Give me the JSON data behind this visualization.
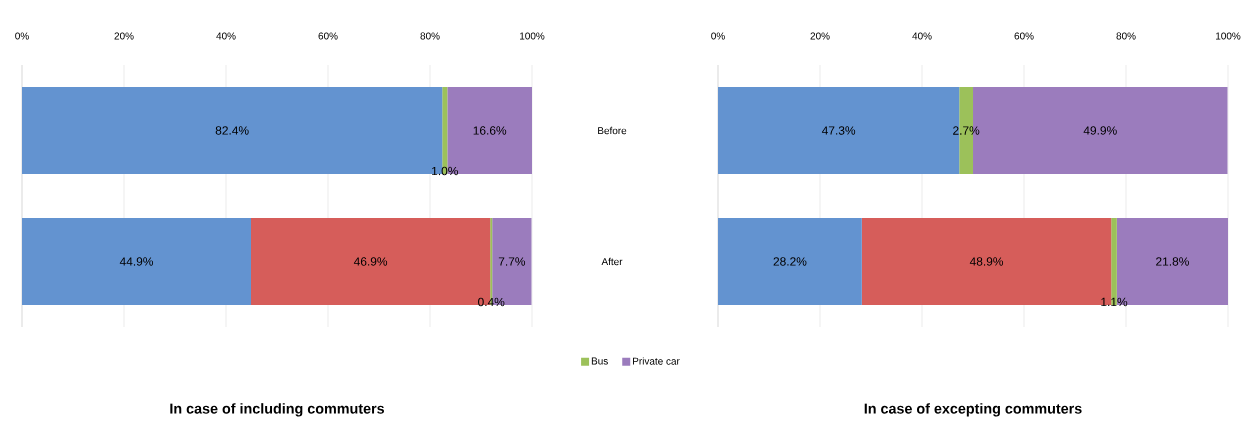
{
  "chart_data": [
    {
      "type": "bar",
      "orientation": "horizontal",
      "stacked": true,
      "title": "In case of including commuters",
      "categories": [
        "Before",
        "After"
      ],
      "xlim": [
        0,
        100
      ],
      "xticks": [
        {
          "value": 0,
          "label": "0%"
        },
        {
          "value": 20,
          "label": "20%"
        },
        {
          "value": 40,
          "label": "40%"
        },
        {
          "value": 60,
          "label": "60%"
        },
        {
          "value": 80,
          "label": "80%"
        },
        {
          "value": 100,
          "label": "100%"
        }
      ],
      "grid": "x",
      "legend": "bottom",
      "series": [
        {
          "color": "#6393d0",
          "values": [
            82.4,
            44.9
          ],
          "value_labels": [
            "82.4%",
            "44.9%"
          ]
        },
        {
          "color": "#d65d5a",
          "values": [
            0,
            46.9
          ],
          "value_labels": [
            null,
            "46.9%"
          ]
        },
        {
          "name": "Bus",
          "color": "#9cc15a",
          "values": [
            1.0,
            0.4
          ],
          "value_labels": [
            "1.0%",
            "0.4%"
          ]
        },
        {
          "name": "Private car",
          "color": "#9b7cbd",
          "values": [
            16.6,
            7.7
          ],
          "value_labels": [
            "16.6%",
            "7.7%"
          ]
        }
      ]
    },
    {
      "type": "bar",
      "orientation": "horizontal",
      "stacked": true,
      "title": "In case of excepting commuters",
      "categories": [
        null,
        null
      ],
      "xlim": [
        0,
        100
      ],
      "xticks": [
        {
          "value": 0,
          "label": "0%"
        },
        {
          "value": 20,
          "label": "20%"
        },
        {
          "value": 40,
          "label": "40%"
        },
        {
          "value": 60,
          "label": "60%"
        },
        {
          "value": 80,
          "label": "80%"
        },
        {
          "value": 100,
          "label": "100%"
        }
      ],
      "grid": "x",
      "series": [
        {
          "color": "#6393d0",
          "values": [
            47.3,
            28.2
          ],
          "value_labels": [
            "47.3%",
            "28.2%"
          ]
        },
        {
          "color": "#d65d5a",
          "values": [
            0,
            48.9
          ],
          "value_labels": [
            null,
            "48.9%"
          ]
        },
        {
          "color": "#9cc15a",
          "values": [
            2.7,
            1.1
          ],
          "value_labels": [
            "2.7%",
            "1.1%"
          ]
        },
        {
          "color": "#9b7cbd",
          "values": [
            49.9,
            21.8
          ],
          "value_labels": [
            "49.9%",
            "21.8%"
          ]
        }
      ]
    }
  ]
}
